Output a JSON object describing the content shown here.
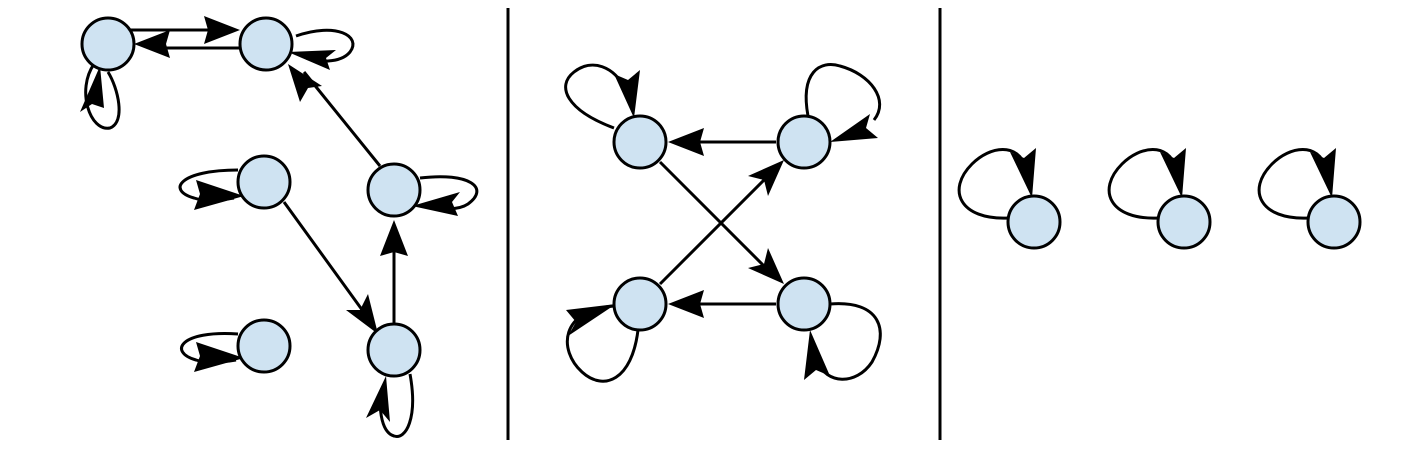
{
  "figure": {
    "description_free": true,
    "colors": {
      "node_fill": "#cfe3f2",
      "stroke": "#000000",
      "background": "#ffffff"
    },
    "panels": [
      {
        "id": "panel-1",
        "nodes": [
          "n1",
          "n2",
          "n3",
          "n4",
          "n5",
          "n6"
        ],
        "edges": [
          {
            "from": "n1",
            "to": "n2",
            "kind": "directed"
          },
          {
            "from": "n2",
            "to": "n1",
            "kind": "directed"
          },
          {
            "from": "n1",
            "to": "n1",
            "kind": "self-loop"
          },
          {
            "from": "n2",
            "to": "n2",
            "kind": "self-loop"
          },
          {
            "from": "n5",
            "to": "n2",
            "kind": "directed"
          },
          {
            "from": "n5",
            "to": "n5",
            "kind": "self-loop"
          },
          {
            "from": "n3",
            "to": "n3",
            "kind": "self-loop"
          },
          {
            "from": "n3",
            "to": "n6",
            "kind": "directed"
          },
          {
            "from": "n6",
            "to": "n5",
            "kind": "directed"
          },
          {
            "from": "n6",
            "to": "n6",
            "kind": "self-loop"
          },
          {
            "from": "n4",
            "to": "n4",
            "kind": "self-loop"
          }
        ]
      },
      {
        "id": "panel-2",
        "nodes": [
          "m1",
          "m2",
          "m3",
          "m4"
        ],
        "edges": [
          {
            "from": "m2",
            "to": "m1",
            "kind": "directed"
          },
          {
            "from": "m4",
            "to": "m3",
            "kind": "directed"
          },
          {
            "from": "m1",
            "to": "m4",
            "kind": "directed"
          },
          {
            "from": "m3",
            "to": "m2",
            "kind": "directed"
          },
          {
            "from": "m1",
            "to": "m1",
            "kind": "self-loop"
          },
          {
            "from": "m2",
            "to": "m2",
            "kind": "self-loop"
          },
          {
            "from": "m3",
            "to": "m3",
            "kind": "self-loop"
          },
          {
            "from": "m4",
            "to": "m4",
            "kind": "self-loop"
          }
        ]
      },
      {
        "id": "panel-3",
        "nodes": [
          "k1",
          "k2",
          "k3"
        ],
        "edges": [
          {
            "from": "k1",
            "to": "k1",
            "kind": "self-loop"
          },
          {
            "from": "k2",
            "to": "k2",
            "kind": "self-loop"
          },
          {
            "from": "k3",
            "to": "k3",
            "kind": "self-loop"
          }
        ]
      }
    ]
  }
}
